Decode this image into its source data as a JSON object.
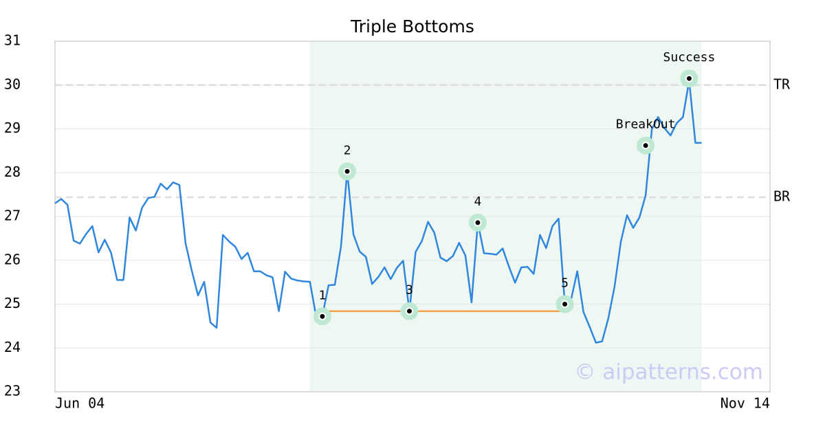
{
  "chart_data": {
    "type": "line",
    "title": "Triple Bottoms",
    "color": "#2e86de",
    "values": [
      27.3,
      27.4,
      27.27,
      26.45,
      26.38,
      26.6,
      26.78,
      26.18,
      26.47,
      26.18,
      25.55,
      25.55,
      26.98,
      26.68,
      27.2,
      27.42,
      27.45,
      27.75,
      27.62,
      27.78,
      27.72,
      26.39,
      25.76,
      25.2,
      25.51,
      24.58,
      24.46,
      26.58,
      26.43,
      26.31,
      26.03,
      26.17,
      25.75,
      25.75,
      25.66,
      25.61,
      24.84,
      25.74,
      25.58,
      25.54,
      25.52,
      25.51,
      24.72,
      24.73,
      25.43,
      25.44,
      26.32,
      28.03,
      26.59,
      26.2,
      26.08,
      25.46,
      25.62,
      25.84,
      25.57,
      25.83,
      25.99,
      24.84,
      26.19,
      26.44,
      26.88,
      26.63,
      26.06,
      25.98,
      26.1,
      26.4,
      26.11,
      25.04,
      26.86,
      26.16,
      26.15,
      26.13,
      26.27,
      25.86,
      25.49,
      25.84,
      25.85,
      25.69,
      26.58,
      26.28,
      26.78,
      26.95,
      25.0,
      25.1,
      25.75,
      24.82,
      24.48,
      24.12,
      24.15,
      24.68,
      25.4,
      26.42,
      27.03,
      26.74,
      26.98,
      27.48,
      29.0,
      29.27,
      29.02,
      28.85,
      29.13,
      29.27,
      30.1,
      28.68,
      28.68
    ],
    "xlim": [
      0,
      115
    ],
    "xticks": [
      {
        "value": 0,
        "label": "Jun 04"
      },
      {
        "value": 115,
        "label": "Nov 14"
      }
    ],
    "ylim": [
      23,
      31
    ],
    "yticks": [
      23,
      24,
      25,
      26,
      27,
      28,
      29,
      30,
      31
    ],
    "grid": true,
    "shade": {
      "x": [
        41,
        104
      ],
      "color": "#eef7f2"
    },
    "support": {
      "x": [
        43,
        82
      ],
      "y": 24.84,
      "color": "#f5a04a"
    },
    "hlines": [
      {
        "label": "TR",
        "value": 30.0
      },
      {
        "label": "BR",
        "value": 27.44
      }
    ],
    "points": [
      {
        "label": "1",
        "x": 43,
        "y": 24.72
      },
      {
        "label": "2",
        "x": 47,
        "y": 28.03
      },
      {
        "label": "3",
        "x": 57,
        "y": 24.84
      },
      {
        "label": "4",
        "x": 68,
        "y": 26.86
      },
      {
        "label": "5",
        "x": 82,
        "y": 25.0
      },
      {
        "label": "BreakOut",
        "x": 95,
        "y": 28.62
      },
      {
        "label": "Success",
        "x": 102,
        "y": 30.15
      }
    ],
    "watermark": "© aipatterns.com"
  }
}
